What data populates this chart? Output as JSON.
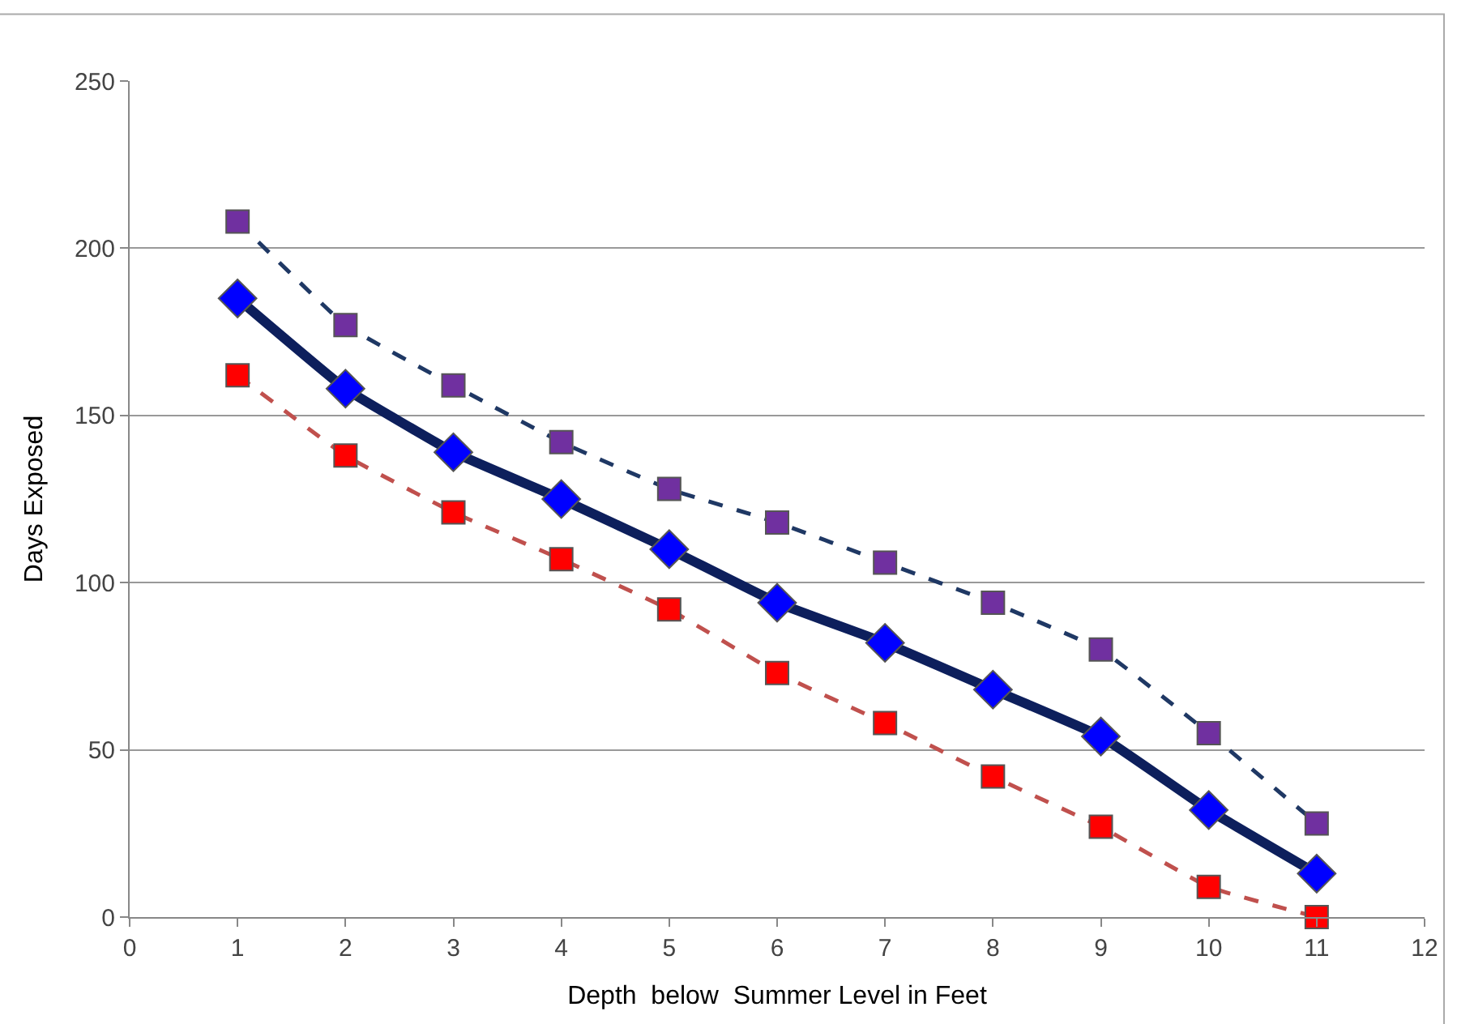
{
  "chart_data": {
    "type": "line",
    "xlabel": "Depth  below  Summer Level in Feet",
    "ylabel": "Days Exposed",
    "x": [
      1,
      2,
      3,
      4,
      5,
      6,
      7,
      8,
      9,
      10,
      11
    ],
    "series": [
      {
        "color": "#1f3864",
        "marker": "square",
        "line_style": "dashed",
        "values": [
          208,
          177,
          159,
          142,
          128,
          118,
          106,
          94,
          80,
          55,
          28
        ]
      },
      {
        "color": "#0d1f5c",
        "marker": "diamond",
        "line_style": "solid",
        "values": [
          185,
          158,
          139,
          125,
          110,
          94,
          82,
          68,
          54,
          32,
          13
        ]
      },
      {
        "color": "#c0504d",
        "marker": "square",
        "line_style": "dashed",
        "values": [
          162,
          138,
          121,
          107,
          92,
          73,
          58,
          42,
          27,
          9,
          0
        ]
      }
    ],
    "xlim": [
      0,
      12
    ],
    "xticks": [
      0,
      1,
      2,
      3,
      4,
      5,
      6,
      7,
      8,
      9,
      10,
      11,
      12
    ],
    "ylim": [
      0,
      250
    ],
    "yticks": [
      0,
      50,
      100,
      150,
      200,
      250
    ],
    "grid": "y"
  }
}
